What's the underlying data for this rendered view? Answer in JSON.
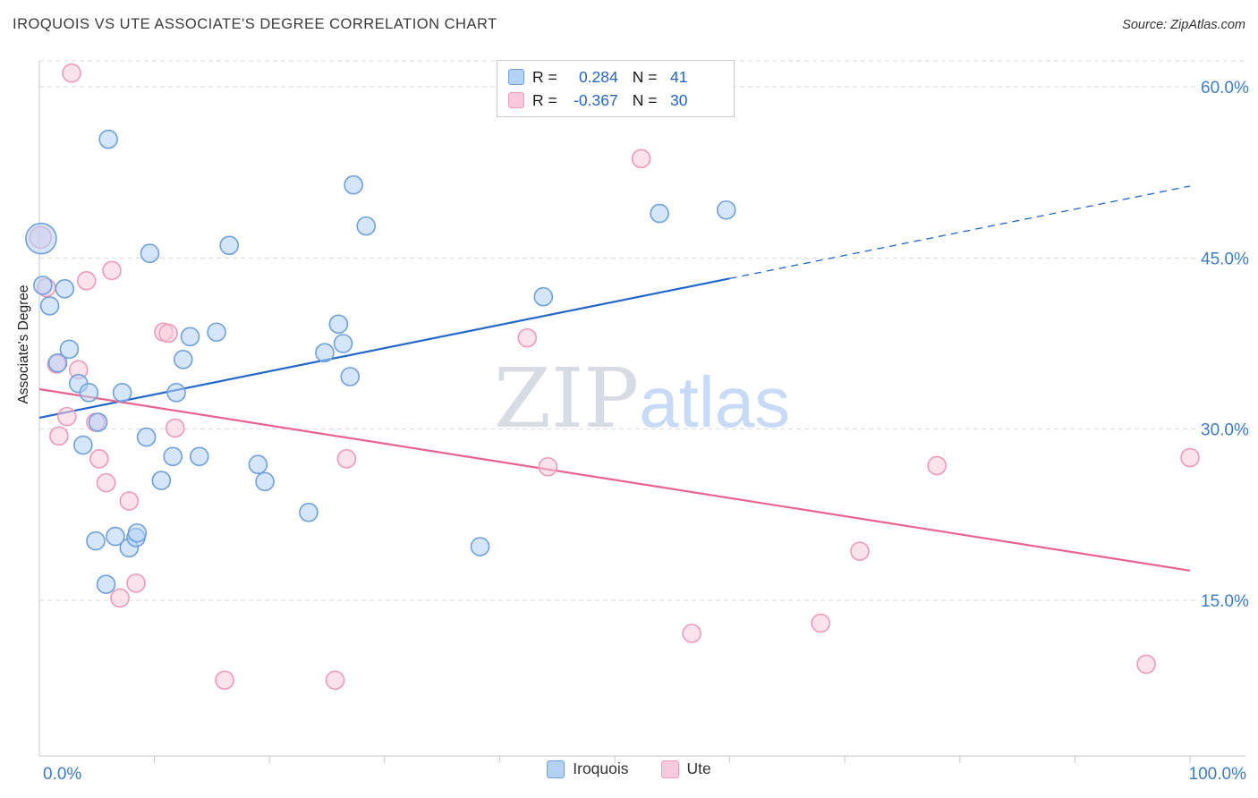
{
  "header": {
    "title": "IROQUOIS VS UTE ASSOCIATE'S DEGREE CORRELATION CHART",
    "source": "Source: ZipAtlas.com"
  },
  "watermark": {
    "part1": "ZIP",
    "part2": "atlas"
  },
  "legend_box": {
    "rows": [
      {
        "series": "Iroquois",
        "r_label": "R =",
        "r_value": "0.284",
        "n_label": "N =",
        "n_value": "41",
        "swatch_fill": "#b3d2f6",
        "swatch_stroke": "#6fa0dd"
      },
      {
        "series": "Ute",
        "r_label": "R =",
        "r_value": "-0.367",
        "n_label": "N =",
        "n_value": "30",
        "swatch_fill": "#f9cadb",
        "swatch_stroke": "#ef9ab8"
      }
    ]
  },
  "bottom_legend": [
    {
      "label": "Iroquois",
      "swatch_fill": "#b3d2f6",
      "swatch_stroke": "#6fa0dd"
    },
    {
      "label": "Ute",
      "swatch_fill": "#f9cadb",
      "swatch_stroke": "#ef9ab8"
    }
  ],
  "chart_data": {
    "type": "scatter",
    "title": "IROQUOIS VS UTE ASSOCIATE'S DEGREE CORRELATION CHART",
    "xlabel": "",
    "ylabel": "Associate's Degree",
    "grid": "dashed-horizontal",
    "legend_position": "top-center and bottom-center",
    "x_axis": {
      "min": 0,
      "max": 100,
      "tick_labels": [
        {
          "value": 0,
          "label": "0.0%"
        },
        {
          "value": 100,
          "label": "100.0%"
        }
      ]
    },
    "y_axis": {
      "min": 0,
      "max": 62,
      "ticks": [
        {
          "value": 60,
          "label": "60.0%"
        },
        {
          "value": 45,
          "label": "45.0%"
        },
        {
          "value": 30,
          "label": "30.0%"
        },
        {
          "value": 15,
          "label": "15.0%"
        }
      ]
    },
    "series": [
      {
        "name": "Iroquois",
        "r": 0.284,
        "n": 41,
        "fill": "#b3d2f6",
        "stroke": "#6fa0dd",
        "points": [
          [
            0.15,
            46.7,
            17
          ],
          [
            0.3,
            42.6
          ],
          [
            0.9,
            40.8
          ],
          [
            2.2,
            42.3
          ],
          [
            1.6,
            35.8
          ],
          [
            2.6,
            37.0
          ],
          [
            3.4,
            34.0
          ],
          [
            4.3,
            33.2
          ],
          [
            3.8,
            28.6
          ],
          [
            5.1,
            30.6
          ],
          [
            6.0,
            55.4
          ],
          [
            4.9,
            20.2
          ],
          [
            5.8,
            16.4
          ],
          [
            6.6,
            20.6
          ],
          [
            7.2,
            33.2
          ],
          [
            7.8,
            19.6
          ],
          [
            8.4,
            20.5
          ],
          [
            8.5,
            20.9
          ],
          [
            9.3,
            29.3
          ],
          [
            9.6,
            45.4
          ],
          [
            10.6,
            25.5
          ],
          [
            11.6,
            27.6
          ],
          [
            11.9,
            33.2
          ],
          [
            12.5,
            36.1
          ],
          [
            13.1,
            38.1
          ],
          [
            13.9,
            27.6
          ],
          [
            15.4,
            38.5
          ],
          [
            16.5,
            46.1
          ],
          [
            19.0,
            26.9
          ],
          [
            19.6,
            25.4
          ],
          [
            23.4,
            22.7
          ],
          [
            24.8,
            36.7
          ],
          [
            26.0,
            39.2
          ],
          [
            26.4,
            37.5
          ],
          [
            27.0,
            34.6
          ],
          [
            27.3,
            51.4
          ],
          [
            28.4,
            47.8
          ],
          [
            38.3,
            19.7
          ],
          [
            43.8,
            41.6
          ],
          [
            53.9,
            48.9
          ],
          [
            59.7,
            49.2
          ]
        ]
      },
      {
        "name": "Ute",
        "r": -0.367,
        "n": 30,
        "fill": "#f9cadb",
        "stroke": "#ef9ab8",
        "points": [
          [
            2.8,
            61.2
          ],
          [
            0.1,
            46.8,
            12
          ],
          [
            0.6,
            42.4
          ],
          [
            1.5,
            35.7
          ],
          [
            1.7,
            29.4
          ],
          [
            2.4,
            31.1
          ],
          [
            3.4,
            35.2
          ],
          [
            4.1,
            43.0
          ],
          [
            4.9,
            30.6
          ],
          [
            5.2,
            27.4
          ],
          [
            5.8,
            25.3
          ],
          [
            6.3,
            43.9
          ],
          [
            7.0,
            15.2
          ],
          [
            7.8,
            23.7
          ],
          [
            8.4,
            16.5
          ],
          [
            10.8,
            38.5
          ],
          [
            11.2,
            38.4
          ],
          [
            11.8,
            30.1
          ],
          [
            16.1,
            8.0
          ],
          [
            25.7,
            8.0
          ],
          [
            26.7,
            27.4
          ],
          [
            42.4,
            38.0
          ],
          [
            44.2,
            26.7
          ],
          [
            52.3,
            53.7
          ],
          [
            56.7,
            12.1
          ],
          [
            67.9,
            13.0
          ],
          [
            71.3,
            19.3
          ],
          [
            78.0,
            26.8
          ],
          [
            96.2,
            9.4
          ],
          [
            100.0,
            27.5
          ]
        ]
      }
    ],
    "trend_lines": [
      {
        "series": "Iroquois",
        "color": "#2268cc",
        "solid": [
          [
            0,
            31.0
          ],
          [
            60,
            43.2
          ]
        ],
        "dashed": [
          [
            60,
            43.2
          ],
          [
            100,
            51.3
          ]
        ]
      },
      {
        "series": "Ute",
        "color": "#e9638f",
        "solid": [
          [
            0,
            33.5
          ],
          [
            100,
            17.6
          ]
        ]
      }
    ],
    "style": {
      "gridline_color": "#d8d8d8",
      "axis_color": "#c9c9c9",
      "tick_label_color": "#3d7cc9"
    }
  }
}
